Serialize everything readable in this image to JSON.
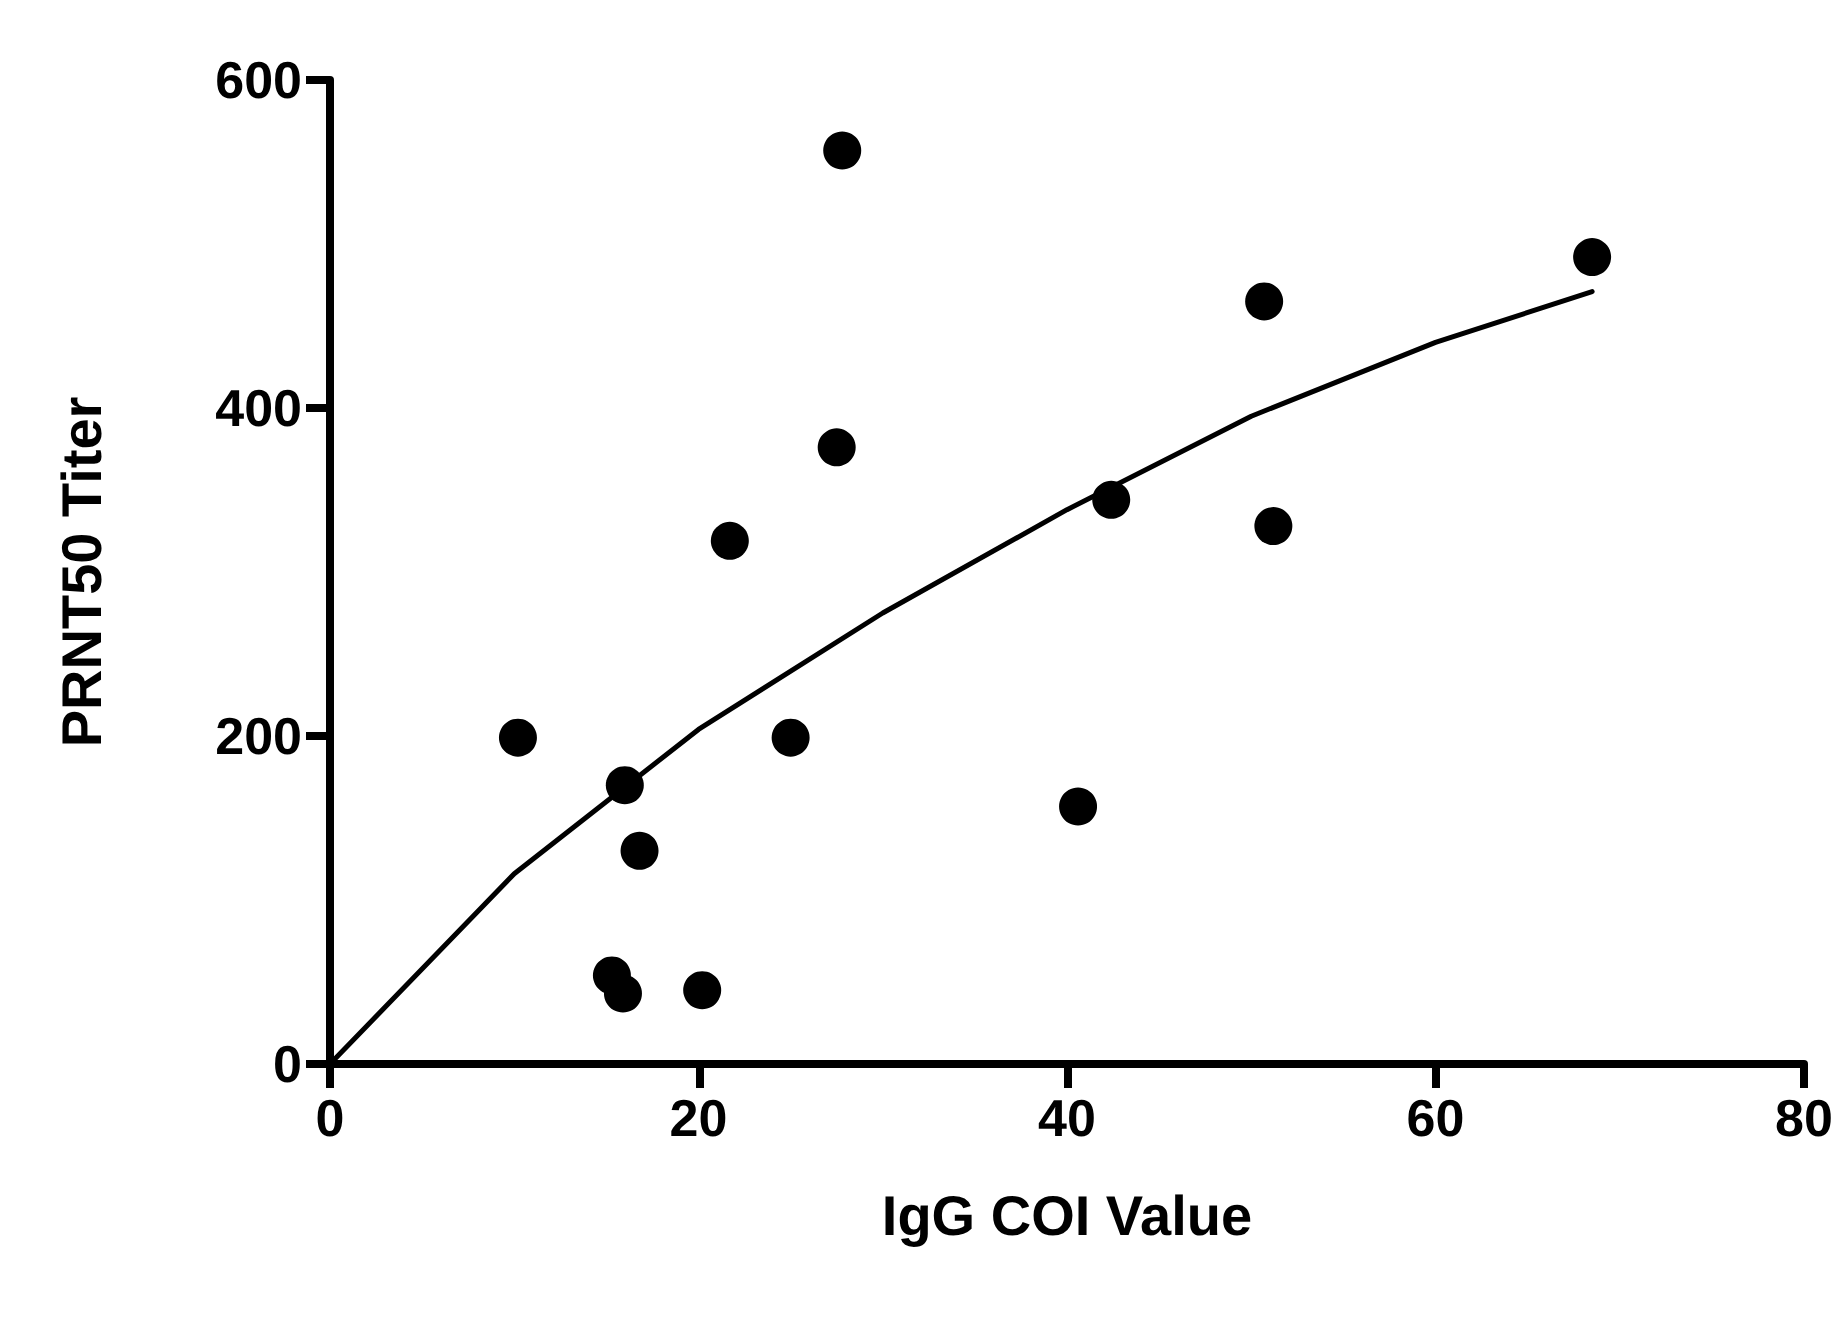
{
  "chart_data": {
    "type": "scatter",
    "xlabel": "IgG COI Value",
    "ylabel": "PRNT50 Titer",
    "xlim": [
      0,
      80
    ],
    "xticks": [
      0,
      20,
      40,
      60,
      80
    ],
    "ylim": [
      0,
      600
    ],
    "yticks": [
      0,
      200,
      400,
      600
    ],
    "grid": false,
    "marker": "circle",
    "series": [
      {
        "color": "#000000",
        "x": [
          27.8,
          27.5,
          21.7,
          10.2,
          25.0,
          16.0,
          16.8,
          15.3,
          15.9,
          20.2,
          40.6,
          42.4,
          50.7,
          51.2,
          68.5
        ],
        "values": [
          557,
          376,
          319,
          199,
          199,
          170,
          130,
          54,
          43,
          45,
          157,
          344,
          465,
          328,
          492
        ]
      },
      {
        "type": "line",
        "color": "#000000",
        "marker": "none",
        "line_style": "solid",
        "x": [
          0,
          10,
          20,
          30,
          40,
          50,
          60,
          68.5
        ],
        "values": [
          0,
          116,
          204,
          275,
          338,
          395,
          440,
          471
        ]
      }
    ]
  }
}
